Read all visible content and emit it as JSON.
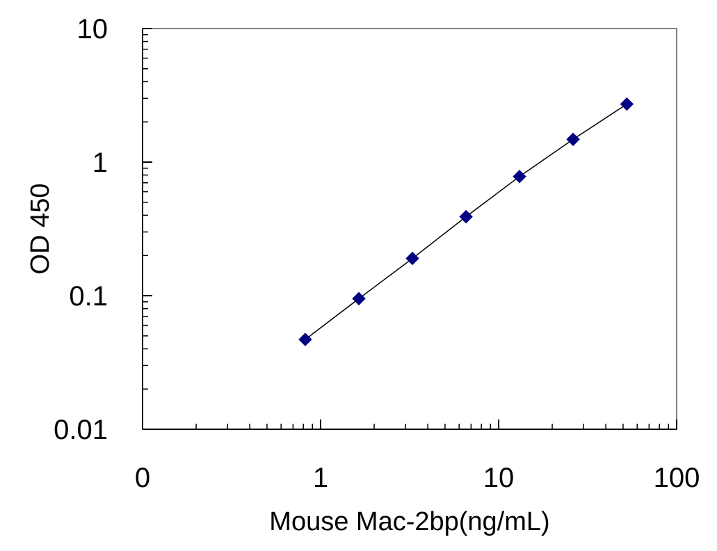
{
  "chart_data": {
    "type": "scatter",
    "title": "",
    "xlabel": "Mouse Mac-2bp(ng/mL)",
    "ylabel": "OD 450",
    "x_scale": "log",
    "y_scale": "log",
    "xlim": [
      0.1,
      100
    ],
    "ylim": [
      0.01,
      10
    ],
    "x_ticks": [
      {
        "value": 0.1,
        "label": "0"
      },
      {
        "value": 1,
        "label": "1"
      },
      {
        "value": 10,
        "label": "10"
      },
      {
        "value": 100,
        "label": "100"
      }
    ],
    "y_ticks": [
      {
        "value": 0.01,
        "label": "0.01"
      },
      {
        "value": 0.1,
        "label": "0.1"
      },
      {
        "value": 1,
        "label": "1"
      },
      {
        "value": 10,
        "label": "10"
      }
    ],
    "grid": false,
    "legend": "none",
    "series": [
      {
        "marker": "diamond",
        "color": "#000080",
        "line_color": "#000000",
        "fit_line": true,
        "x": [
          0.82,
          1.64,
          3.28,
          6.56,
          13.1,
          26.2,
          52.5
        ],
        "y": [
          0.047,
          0.095,
          0.19,
          0.39,
          0.78,
          1.48,
          2.72
        ]
      }
    ]
  }
}
